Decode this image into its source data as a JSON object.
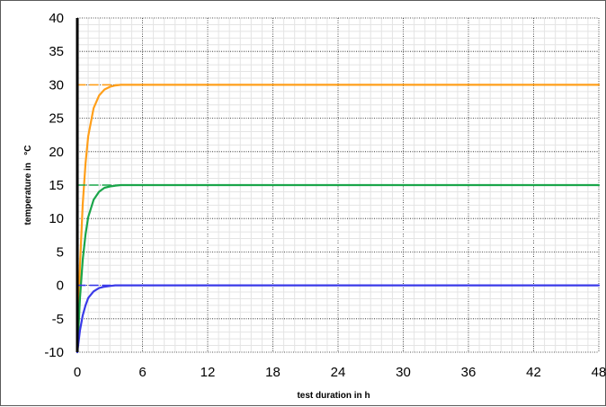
{
  "chart_data": {
    "type": "line",
    "title": "",
    "xlabel": "test duration in h",
    "ylabel": "temperature in   °C",
    "xlim": [
      0,
      48
    ],
    "ylim": [
      -10,
      40
    ],
    "xticks": [
      "0",
      "6",
      "12",
      "18",
      "24",
      "30",
      "36",
      "42",
      "48"
    ],
    "yticks": [
      "-10",
      "-5",
      "0",
      "5",
      "10",
      "15",
      "20",
      "25",
      "30",
      "35",
      "40"
    ],
    "grid": {
      "major": true,
      "minor": true,
      "major_style": "dotted"
    },
    "legend": "none",
    "series": [
      {
        "color": "#ff9f1a",
        "style": "solid",
        "x": [
          0,
          0.25,
          0.5,
          0.75,
          1,
          1.5,
          2,
          2.5,
          3,
          3.5,
          4,
          6,
          12,
          18,
          24,
          30,
          36,
          42,
          48
        ],
        "y": [
          -10,
          3.1,
          12.1,
          18.2,
          22.3,
          26.5,
          28.4,
          29.3,
          29.7,
          29.9,
          30,
          30,
          30,
          30,
          30,
          30,
          30,
          30,
          30
        ]
      },
      {
        "color": "#1aa54a",
        "style": "solid",
        "x": [
          0,
          0.25,
          0.5,
          0.75,
          1,
          1.5,
          2,
          2.5,
          3,
          3.5,
          4,
          6,
          12,
          18,
          24,
          30,
          36,
          42,
          48
        ],
        "y": [
          -10,
          -1.8,
          3.8,
          7.6,
          10.2,
          12.8,
          14,
          14.6,
          14.8,
          14.9,
          15,
          15,
          15,
          15,
          15,
          15,
          15,
          15,
          15
        ]
      },
      {
        "color": "#3a3ae8",
        "style": "solid",
        "x": [
          0,
          0.25,
          0.5,
          0.75,
          1,
          1.5,
          2,
          2.5,
          3,
          3.5,
          4,
          6,
          12,
          18,
          24,
          30,
          36,
          42,
          48
        ],
        "y": [
          -10,
          -6.7,
          -4.5,
          -3,
          -1.9,
          -0.9,
          -0.4,
          -0.2,
          -0.1,
          0,
          0,
          0,
          0,
          0,
          0,
          0,
          0,
          0,
          0
        ]
      },
      {
        "color": "#ff9f1a",
        "style": "dashed",
        "x": [
          0,
          48
        ],
        "y": [
          30,
          30
        ]
      },
      {
        "color": "#1aa54a",
        "style": "dashed",
        "x": [
          0,
          48
        ],
        "y": [
          15,
          15
        ]
      },
      {
        "color": "#3a3ae8",
        "style": "dashed",
        "x": [
          0,
          48
        ],
        "y": [
          0,
          0
        ]
      }
    ]
  }
}
